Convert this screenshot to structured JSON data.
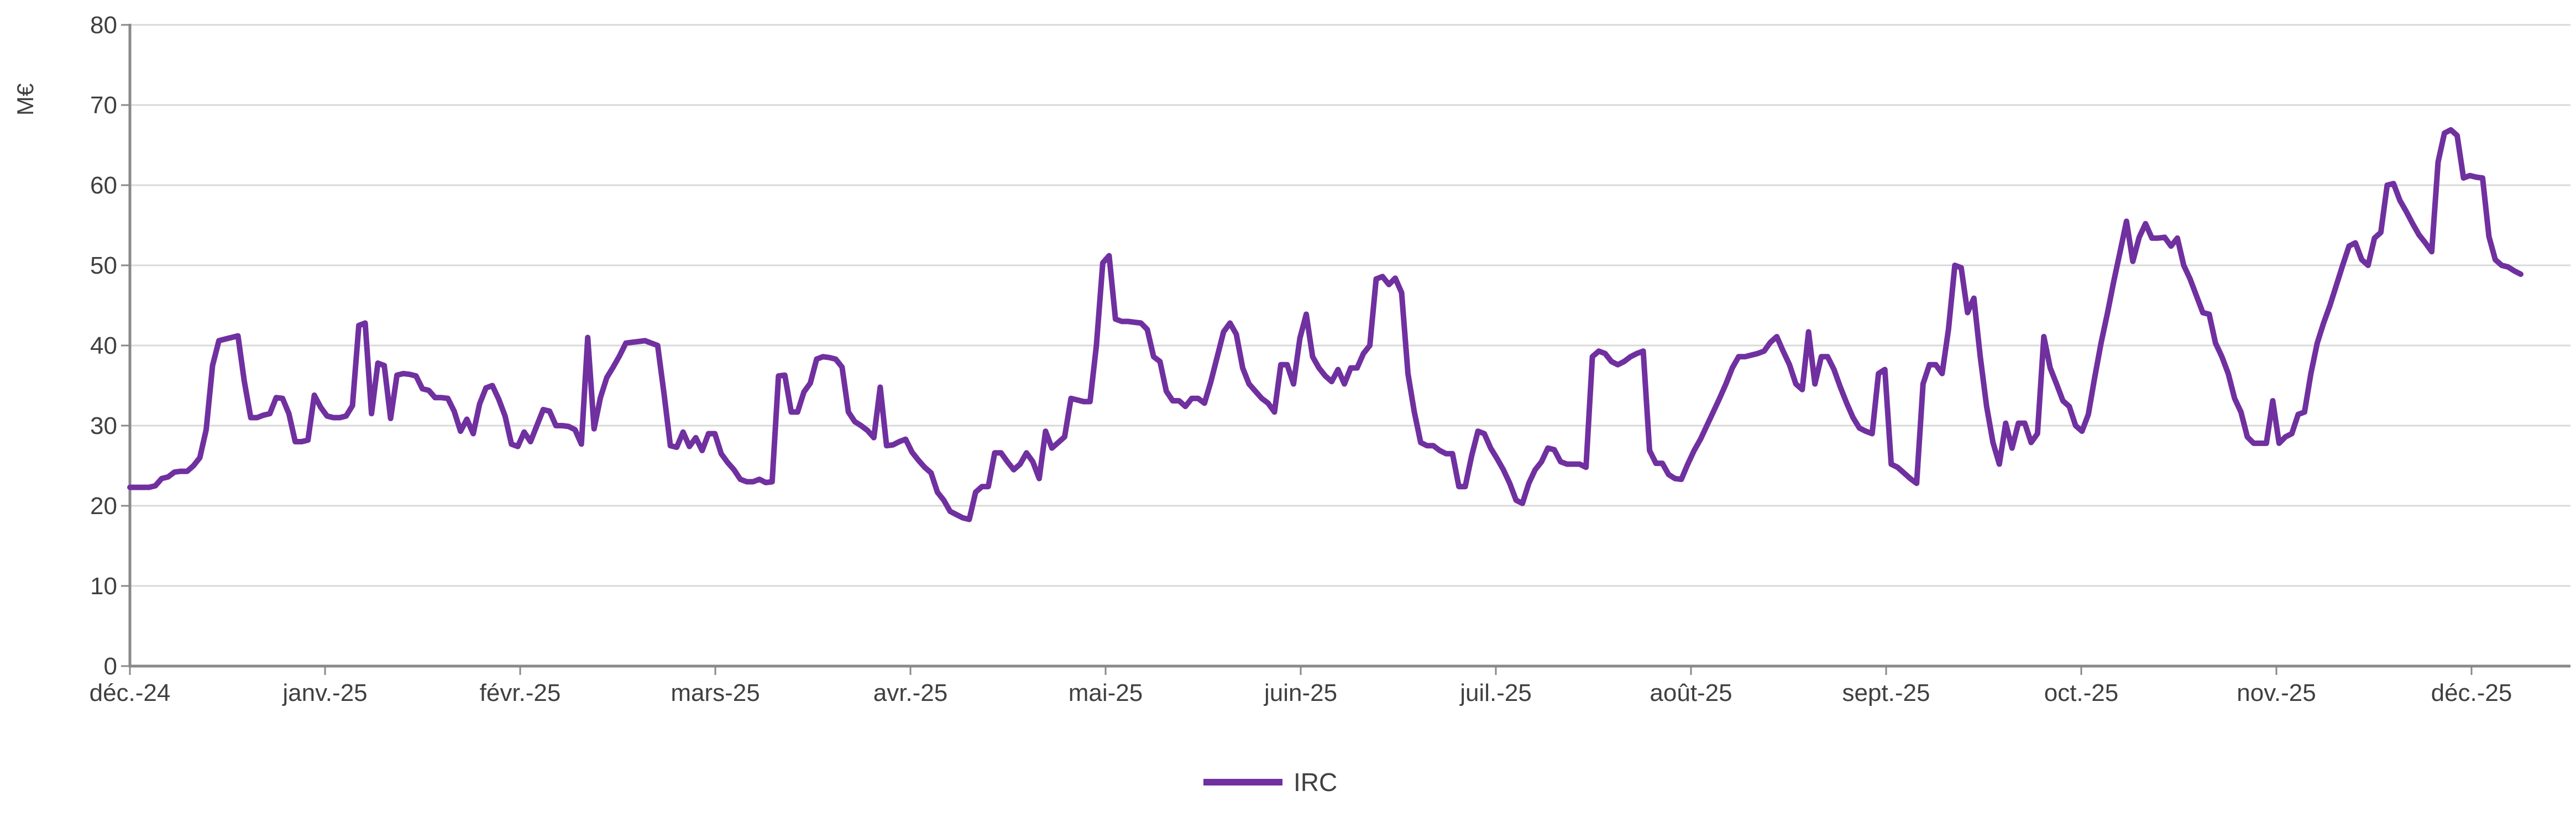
{
  "chart_data": {
    "type": "line",
    "title": "",
    "ylabel": "M€",
    "xlabel": "",
    "ylim": [
      0,
      80
    ],
    "yticks": [
      0,
      10,
      20,
      30,
      40,
      50,
      60,
      70,
      80
    ],
    "ytick_labels": [
      "0",
      "10",
      "20",
      "30",
      "40",
      "50",
      "60",
      "70",
      "80"
    ],
    "x_tick_labels": [
      "déc.-24",
      "janv.-25",
      "févr.-25",
      "mars-25",
      "avr.-25",
      "mai-25",
      "juin-25",
      "juil.-25",
      "août-25",
      "sept.-25",
      "oct.-25",
      "nov.-25",
      "déc.-25"
    ],
    "grid": true,
    "legend_position": "bottom",
    "colors": {
      "line": "#7030A0",
      "gridline": "#D9D9D9",
      "axis": "#898989",
      "text": "#404040"
    },
    "series": [
      {
        "name": "IRC",
        "color": "#7030A0",
        "values": [
          22.3,
          22.3,
          22.3,
          22.3,
          22.5,
          23.4,
          23.6,
          24.2,
          24.3,
          24.3,
          25,
          26,
          29.5,
          37.5,
          40.6,
          40.8,
          41,
          41.2,
          35.5,
          31,
          31,
          31.3,
          31.5,
          33.5,
          33.4,
          31.5,
          28,
          28,
          28.2,
          33.8,
          32.3,
          31.2,
          31,
          31,
          31.2,
          32.5,
          42.5,
          42.8,
          31.5,
          37.8,
          37.5,
          30.9,
          36.3,
          36.5,
          36.4,
          36.2,
          34.6,
          34.4,
          33.5,
          33.5,
          33.4,
          31.8,
          29.3,
          30.8,
          29,
          32.7,
          34.7,
          35,
          33.3,
          31.2,
          27.7,
          27.4,
          29.2,
          28,
          30,
          32,
          31.8,
          30,
          30,
          29.9,
          29.5,
          27.7,
          41,
          29.6,
          33.5,
          36,
          37.3,
          38.7,
          40.3,
          40.4,
          40.5,
          40.6,
          40.3,
          40,
          34,
          27.5,
          27.3,
          29.2,
          27.4,
          28.5,
          26.9,
          29,
          29,
          26.5,
          25.4,
          24.5,
          23.3,
          23,
          23,
          23.3,
          22.9,
          23,
          36.2,
          36.3,
          31.7,
          31.7,
          34.2,
          35.3,
          38.3,
          38.6,
          38.5,
          38.3,
          37.3,
          31.7,
          30.5,
          30,
          29.4,
          28.5,
          34.8,
          27.5,
          27.6,
          28,
          28.3,
          26.7,
          25.7,
          24.8,
          24.1,
          21.7,
          20.7,
          19.3,
          18.9,
          18.5,
          18.3,
          21.7,
          22.4,
          22.4,
          26.6,
          26.6,
          25.5,
          24.5,
          25.2,
          26.6,
          25.5,
          23.4,
          29.3,
          27.2,
          27.9,
          28.6,
          33.4,
          33.2,
          33,
          33,
          40,
          50.3,
          51.2,
          43.3,
          43,
          43,
          42.9,
          42.8,
          42,
          38.6,
          38,
          34.3,
          33.1,
          33.1,
          32.4,
          33.4,
          33.4,
          32.8,
          35.5,
          38.6,
          41.7,
          42.8,
          41.4,
          37.2,
          35.2,
          34.3,
          33.4,
          32.8,
          31.7,
          37.6,
          37.6,
          35.2,
          40.9,
          43.9,
          38.6,
          37.2,
          36.2,
          35.5,
          37,
          35.2,
          37.2,
          37.2,
          39,
          40,
          48.3,
          48.6,
          47.6,
          48.4,
          46.6,
          36.5,
          31.7,
          27.9,
          27.5,
          27.5,
          26.9,
          26.5,
          26.5,
          22.4,
          22.4,
          26.2,
          29.3,
          29,
          27.2,
          25.9,
          24.5,
          22.8,
          20.7,
          20.3,
          22.8,
          24.5,
          25.5,
          27.2,
          27,
          25.5,
          25.2,
          25.2,
          25.2,
          24.8,
          38.6,
          39.3,
          39,
          38,
          37.6,
          38,
          38.6,
          39,
          39.3,
          26.9,
          25.3,
          25.3,
          23.9,
          23.4,
          23.3,
          25.2,
          26.9,
          28.3,
          30,
          31.7,
          33.4,
          35.2,
          37.2,
          38.6,
          38.6,
          38.8,
          39,
          39.3,
          40.4,
          41.1,
          39.3,
          37.6,
          35.2,
          34.5,
          41.7,
          35.2,
          38.6,
          38.6,
          37,
          34.8,
          32.8,
          31,
          29.7,
          29.3,
          29,
          36.5,
          37,
          25.2,
          24.8,
          24.1,
          23.4,
          22.8,
          35.2,
          37.6,
          37.6,
          36.5,
          42,
          50,
          49.7,
          44.1,
          45.9,
          38.6,
          32.4,
          27.9,
          25.2,
          30.3,
          27.2,
          30.3,
          30.3,
          27.9,
          29,
          41.1,
          37.2,
          35.2,
          33.1,
          32.4,
          30,
          29.3,
          31.4,
          36,
          40.3,
          44,
          48,
          51.7,
          55.5,
          50.5,
          53.5,
          55.2,
          53.4,
          53.4,
          53.5,
          52.4,
          53.4,
          50,
          48.3,
          46.2,
          44.1,
          43.9,
          40.3,
          38.6,
          36.5,
          33.4,
          31.7,
          28.6,
          27.8,
          27.8,
          27.8,
          33.1,
          27.8,
          28.6,
          29,
          31.4,
          31.7,
          36.5,
          40.3,
          42.8,
          45,
          47.5,
          50,
          52.4,
          52.8,
          50.7,
          50,
          53.4,
          54.1,
          60,
          60.2,
          58.1,
          56.7,
          55.2,
          53.8,
          52.8,
          51.7,
          62.9,
          66.5,
          66.9,
          66.2,
          60.9,
          61.2,
          61,
          60.9,
          53.6,
          50.7,
          50,
          49.8,
          49.3,
          48.9
        ]
      }
    ]
  },
  "legend": {
    "label": "IRC"
  }
}
